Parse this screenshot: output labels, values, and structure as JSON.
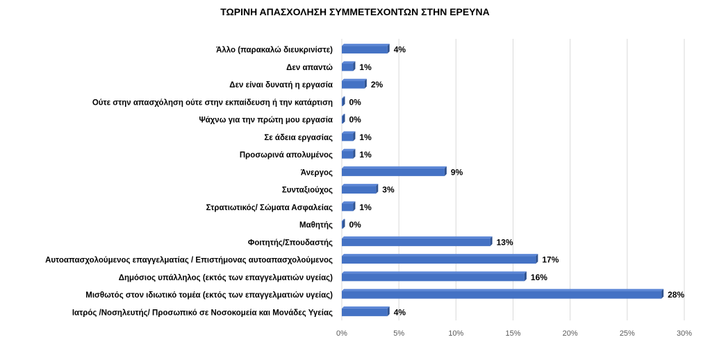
{
  "chart_data": {
    "type": "bar",
    "orientation": "horizontal",
    "title": "ΤΩΡΙΝΗ ΑΠΑΣΧΟΛΗΣΗ ΣΥΜΜΕΤΕΧΟΝΤΩΝ ΣΤΗΝ ΕΡΕΥΝΑ",
    "xlabel": "",
    "ylabel": "",
    "xlim": [
      0,
      30
    ],
    "ticks": [
      "0%",
      "5%",
      "10%",
      "15%",
      "20%",
      "25%",
      "30%"
    ],
    "tick_values": [
      0,
      5,
      10,
      15,
      20,
      25,
      30
    ],
    "grid": true,
    "bar_color": "#4472C4",
    "categories": [
      "Άλλο (παρακαλώ διευκρινίστε)",
      "Δεν απαντώ",
      "Δεν είναι δυνατή η εργασία",
      "Ούτε στην απασχόληση ούτε στην εκπαίδευση ή την κατάρτιση",
      "Ψάχνω για την πρώτη μου εργασία",
      "Σε άδεια εργασίας",
      "Προσωρινά απολυμένος",
      "Άνεργος",
      "Συνταξιούχος",
      "Στρατιωτικός/ Σώματα Ασφαλείας",
      "Μαθητής",
      "Φοιτητής/Σπουδαστής",
      "Αυτοαπασχολούμενος επαγγελματίας / Επιστήμονας αυτοαπασχολούμενος",
      "Δημόσιος υπάλληλος (εκτός των επαγγελματιών υγείας)",
      "Μισθωτός στον ιδιωτικό τομέα (εκτός των επαγγελματιών υγείας)",
      "Ιατρός /Νοσηλευτής/ Προσωπικό σε Νοσοκομεία και Μονάδες Υγείας"
    ],
    "values": [
      4,
      1,
      2,
      0,
      0,
      1,
      1,
      9,
      3,
      1,
      0,
      13,
      17,
      16,
      28,
      4
    ],
    "value_labels": [
      "4%",
      "1%",
      "2%",
      "0%",
      "0%",
      "1%",
      "1%",
      "9%",
      "3%",
      "1%",
      "0%",
      "13%",
      "17%",
      "16%",
      "28%",
      "4%"
    ]
  }
}
